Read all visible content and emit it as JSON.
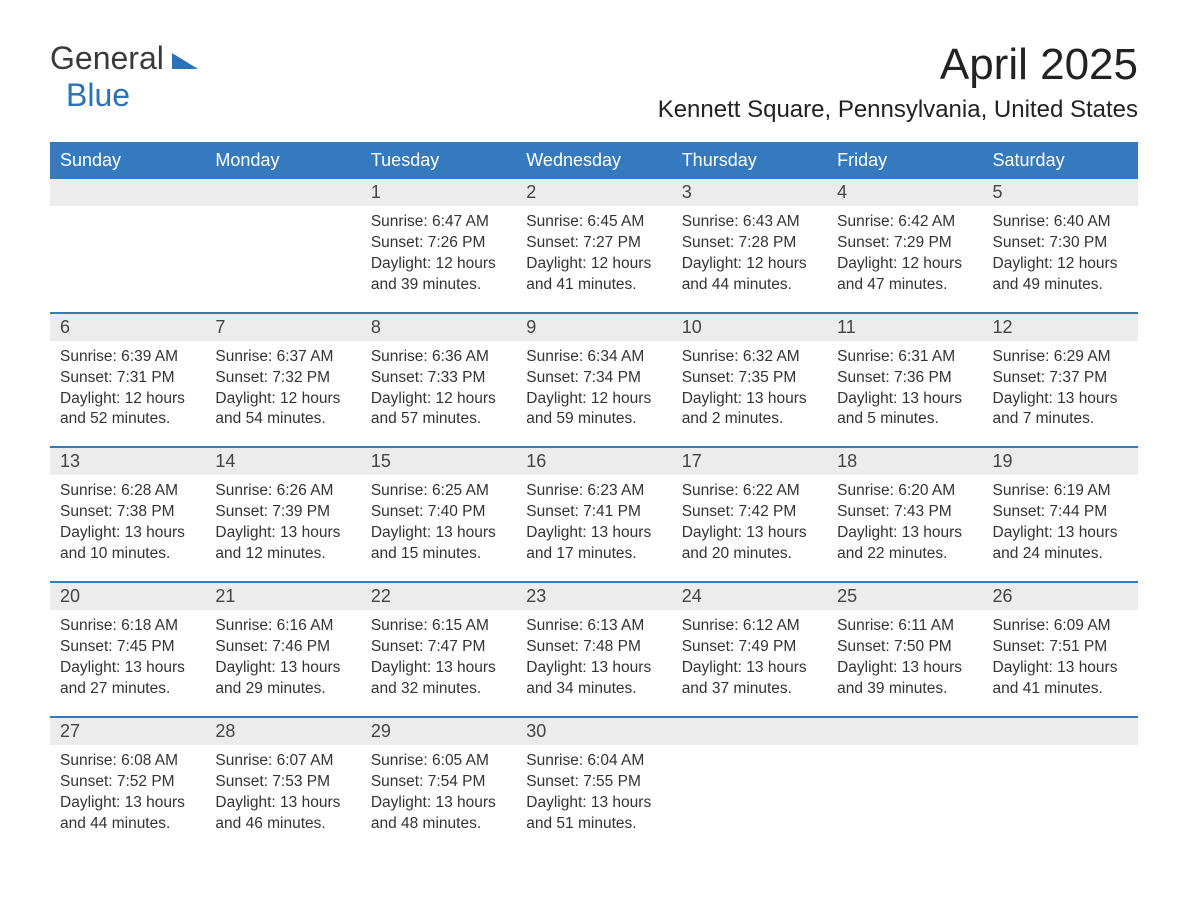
{
  "brand": {
    "line1": "General",
    "line2": "Blue",
    "logo_color": "#2a71b8",
    "text_color": "#3a3a3a"
  },
  "title": "April 2025",
  "location": "Kennett Square, Pennsylvania, United States",
  "colors": {
    "header_bg": "#3579be",
    "header_text": "#ffffff",
    "daynum_bg": "#ececec",
    "body_text": "#333333",
    "rule": "#3579be",
    "page_bg": "#ffffff"
  },
  "fonts": {
    "title_pt": 44,
    "location_pt": 24,
    "dow_pt": 18,
    "daynum_pt": 18,
    "body_pt": 15.5,
    "logo_pt": 32
  },
  "days_of_week": [
    "Sunday",
    "Monday",
    "Tuesday",
    "Wednesday",
    "Thursday",
    "Friday",
    "Saturday"
  ],
  "weeks": [
    [
      {
        "n": "",
        "sunrise": "",
        "sunset": "",
        "daylight": ""
      },
      {
        "n": "",
        "sunrise": "",
        "sunset": "",
        "daylight": ""
      },
      {
        "n": "1",
        "sunrise": "Sunrise: 6:47 AM",
        "sunset": "Sunset: 7:26 PM",
        "daylight": "Daylight: 12 hours and 39 minutes."
      },
      {
        "n": "2",
        "sunrise": "Sunrise: 6:45 AM",
        "sunset": "Sunset: 7:27 PM",
        "daylight": "Daylight: 12 hours and 41 minutes."
      },
      {
        "n": "3",
        "sunrise": "Sunrise: 6:43 AM",
        "sunset": "Sunset: 7:28 PM",
        "daylight": "Daylight: 12 hours and 44 minutes."
      },
      {
        "n": "4",
        "sunrise": "Sunrise: 6:42 AM",
        "sunset": "Sunset: 7:29 PM",
        "daylight": "Daylight: 12 hours and 47 minutes."
      },
      {
        "n": "5",
        "sunrise": "Sunrise: 6:40 AM",
        "sunset": "Sunset: 7:30 PM",
        "daylight": "Daylight: 12 hours and 49 minutes."
      }
    ],
    [
      {
        "n": "6",
        "sunrise": "Sunrise: 6:39 AM",
        "sunset": "Sunset: 7:31 PM",
        "daylight": "Daylight: 12 hours and 52 minutes."
      },
      {
        "n": "7",
        "sunrise": "Sunrise: 6:37 AM",
        "sunset": "Sunset: 7:32 PM",
        "daylight": "Daylight: 12 hours and 54 minutes."
      },
      {
        "n": "8",
        "sunrise": "Sunrise: 6:36 AM",
        "sunset": "Sunset: 7:33 PM",
        "daylight": "Daylight: 12 hours and 57 minutes."
      },
      {
        "n": "9",
        "sunrise": "Sunrise: 6:34 AM",
        "sunset": "Sunset: 7:34 PM",
        "daylight": "Daylight: 12 hours and 59 minutes."
      },
      {
        "n": "10",
        "sunrise": "Sunrise: 6:32 AM",
        "sunset": "Sunset: 7:35 PM",
        "daylight": "Daylight: 13 hours and 2 minutes."
      },
      {
        "n": "11",
        "sunrise": "Sunrise: 6:31 AM",
        "sunset": "Sunset: 7:36 PM",
        "daylight": "Daylight: 13 hours and 5 minutes."
      },
      {
        "n": "12",
        "sunrise": "Sunrise: 6:29 AM",
        "sunset": "Sunset: 7:37 PM",
        "daylight": "Daylight: 13 hours and 7 minutes."
      }
    ],
    [
      {
        "n": "13",
        "sunrise": "Sunrise: 6:28 AM",
        "sunset": "Sunset: 7:38 PM",
        "daylight": "Daylight: 13 hours and 10 minutes."
      },
      {
        "n": "14",
        "sunrise": "Sunrise: 6:26 AM",
        "sunset": "Sunset: 7:39 PM",
        "daylight": "Daylight: 13 hours and 12 minutes."
      },
      {
        "n": "15",
        "sunrise": "Sunrise: 6:25 AM",
        "sunset": "Sunset: 7:40 PM",
        "daylight": "Daylight: 13 hours and 15 minutes."
      },
      {
        "n": "16",
        "sunrise": "Sunrise: 6:23 AM",
        "sunset": "Sunset: 7:41 PM",
        "daylight": "Daylight: 13 hours and 17 minutes."
      },
      {
        "n": "17",
        "sunrise": "Sunrise: 6:22 AM",
        "sunset": "Sunset: 7:42 PM",
        "daylight": "Daylight: 13 hours and 20 minutes."
      },
      {
        "n": "18",
        "sunrise": "Sunrise: 6:20 AM",
        "sunset": "Sunset: 7:43 PM",
        "daylight": "Daylight: 13 hours and 22 minutes."
      },
      {
        "n": "19",
        "sunrise": "Sunrise: 6:19 AM",
        "sunset": "Sunset: 7:44 PM",
        "daylight": "Daylight: 13 hours and 24 minutes."
      }
    ],
    [
      {
        "n": "20",
        "sunrise": "Sunrise: 6:18 AM",
        "sunset": "Sunset: 7:45 PM",
        "daylight": "Daylight: 13 hours and 27 minutes."
      },
      {
        "n": "21",
        "sunrise": "Sunrise: 6:16 AM",
        "sunset": "Sunset: 7:46 PM",
        "daylight": "Daylight: 13 hours and 29 minutes."
      },
      {
        "n": "22",
        "sunrise": "Sunrise: 6:15 AM",
        "sunset": "Sunset: 7:47 PM",
        "daylight": "Daylight: 13 hours and 32 minutes."
      },
      {
        "n": "23",
        "sunrise": "Sunrise: 6:13 AM",
        "sunset": "Sunset: 7:48 PM",
        "daylight": "Daylight: 13 hours and 34 minutes."
      },
      {
        "n": "24",
        "sunrise": "Sunrise: 6:12 AM",
        "sunset": "Sunset: 7:49 PM",
        "daylight": "Daylight: 13 hours and 37 minutes."
      },
      {
        "n": "25",
        "sunrise": "Sunrise: 6:11 AM",
        "sunset": "Sunset: 7:50 PM",
        "daylight": "Daylight: 13 hours and 39 minutes."
      },
      {
        "n": "26",
        "sunrise": "Sunrise: 6:09 AM",
        "sunset": "Sunset: 7:51 PM",
        "daylight": "Daylight: 13 hours and 41 minutes."
      }
    ],
    [
      {
        "n": "27",
        "sunrise": "Sunrise: 6:08 AM",
        "sunset": "Sunset: 7:52 PM",
        "daylight": "Daylight: 13 hours and 44 minutes."
      },
      {
        "n": "28",
        "sunrise": "Sunrise: 6:07 AM",
        "sunset": "Sunset: 7:53 PM",
        "daylight": "Daylight: 13 hours and 46 minutes."
      },
      {
        "n": "29",
        "sunrise": "Sunrise: 6:05 AM",
        "sunset": "Sunset: 7:54 PM",
        "daylight": "Daylight: 13 hours and 48 minutes."
      },
      {
        "n": "30",
        "sunrise": "Sunrise: 6:04 AM",
        "sunset": "Sunset: 7:55 PM",
        "daylight": "Daylight: 13 hours and 51 minutes."
      },
      {
        "n": "",
        "sunrise": "",
        "sunset": "",
        "daylight": ""
      },
      {
        "n": "",
        "sunrise": "",
        "sunset": "",
        "daylight": ""
      },
      {
        "n": "",
        "sunrise": "",
        "sunset": "",
        "daylight": ""
      }
    ]
  ]
}
